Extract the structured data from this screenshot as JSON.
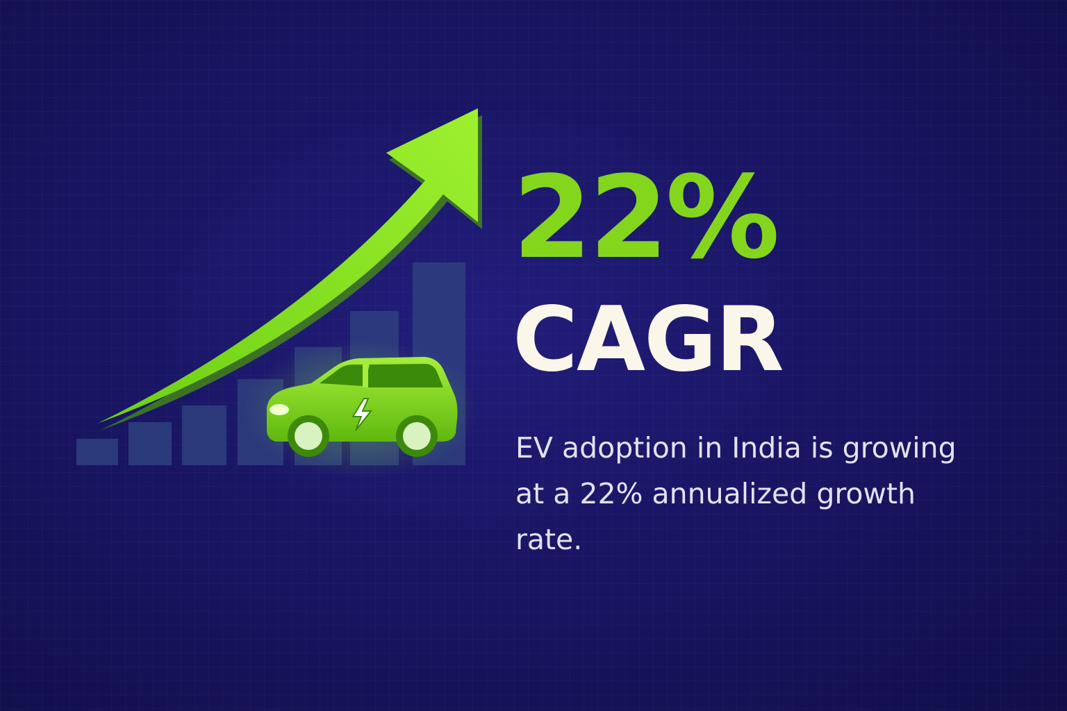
{
  "headline": {
    "stat": "22%",
    "label": "CAGR"
  },
  "description": "EV adoption in India is growing at a 22% annualized growth rate.",
  "colors": {
    "background": "#16135a",
    "accent_green": "#84d61c",
    "headline_white": "#fbf6ea",
    "body_text": "#e4e1f2",
    "bars": "#2e3f7e"
  },
  "icons": [
    "growth-arrow-icon",
    "electric-car-icon",
    "lightning-bolt-icon"
  ]
}
